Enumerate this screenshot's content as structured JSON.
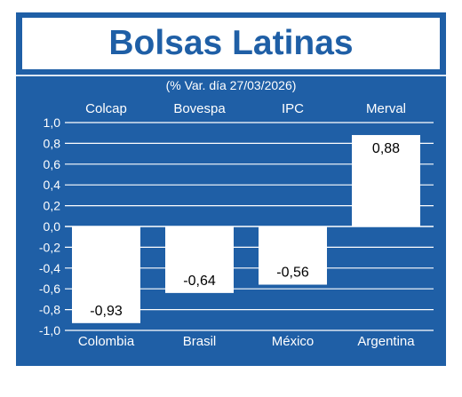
{
  "title": "Bolsas Latinas",
  "subtitle": "(% Var. día 27/03/2026)",
  "colors": {
    "panel": "#1f5fa6",
    "bar": "#ffffff",
    "text": "#ffffff",
    "value_text": "#000000"
  },
  "chart_data": {
    "type": "bar",
    "title": "Bolsas Latinas",
    "subtitle": "(% Var. día 27/03/2026)",
    "indices": [
      "Colcap",
      "Bovespa",
      "IPC",
      "Merval"
    ],
    "categories": [
      "Colombia",
      "Brasil",
      "México",
      "Argentina"
    ],
    "values": [
      -0.93,
      -0.64,
      -0.56,
      0.88
    ],
    "value_labels": [
      "-0,93",
      "-0,64",
      "-0,56",
      "0,88"
    ],
    "ylim": [
      -1.0,
      1.0
    ],
    "yticks": [
      1.0,
      0.8,
      0.6,
      0.4,
      0.2,
      0.0,
      -0.2,
      -0.4,
      -0.6,
      -0.8,
      -1.0
    ],
    "ytick_labels": [
      "1,0",
      "0,8",
      "0,6",
      "0,4",
      "0,2",
      "0,0",
      "-0,2",
      "-0,4",
      "-0,6",
      "-0,8",
      "-1,0"
    ],
    "grid": true,
    "legend": "none"
  }
}
